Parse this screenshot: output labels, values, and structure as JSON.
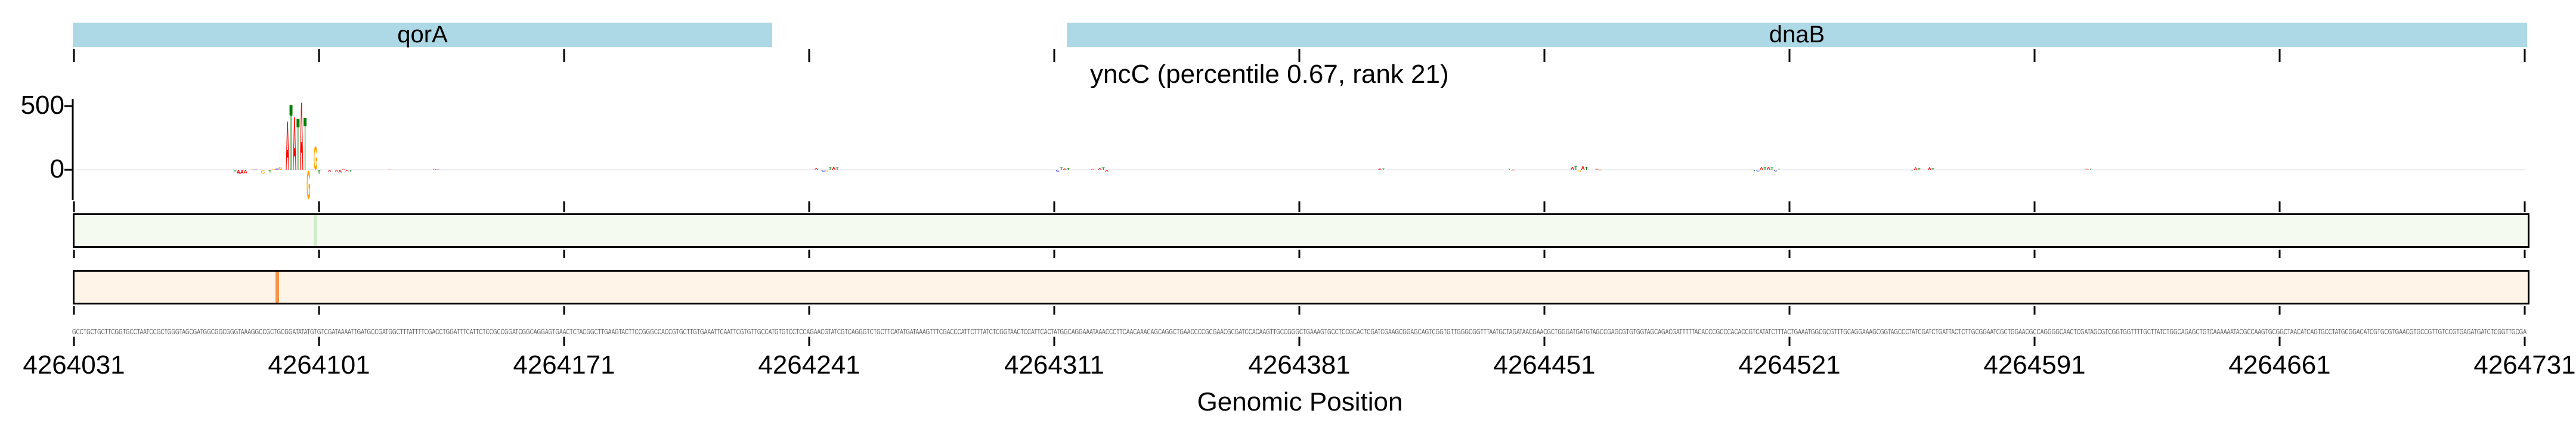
{
  "chart_data": {
    "type": "sequence-logo",
    "title": "yncC (percentile 0.67, rank 21)",
    "xlabel": "Genomic Position",
    "ylabel": "",
    "ylim": [
      -234,
      553
    ],
    "yticks": [
      {
        "value": 500,
        "label": "500"
      },
      {
        "value": 0,
        "label": "0"
      }
    ],
    "start": 4264031,
    "end": 4264731,
    "xticks": [
      "4264031",
      "4264101",
      "4264171",
      "4264241",
      "4264311",
      "4264381",
      "4264451",
      "4264521",
      "4264591",
      "4264661",
      "4264731"
    ],
    "genes": [
      {
        "name": "qorA",
        "start": 4264031,
        "end": 4264230
      },
      {
        "name": "dnaB",
        "start": 4264314,
        "end": 4264731
      }
    ],
    "base_colors": {
      "A": "#ff0000",
      "C": "#0000ff",
      "G": "#ffa500",
      "T": "#008000"
    },
    "sequence": "GCCTGCTGCTTCGGTGCCTAATCCGCTGGGTAGCGATGGCGGCGGGTAAAGGCCGCTGCGGATATATGTGTCGATAAAATTGATGCCGATGGCTTTATTTTCGACCTGGATTTCATTCTCCGCCGGATCGGCAGGAGTGAACTCTACGGCTTGAAGTACTTCCGGGCCACCGTGCTTGTGAAATTCAATTCGTGTTGCCATGTGTCCTCCAGAACGTATCGTCAGGGTCTGCTTCATATGATAAAGTTTCGACCCATTCTTTATCTCGGTAACTCCATTCACTATGGCAGGAAATAAACCCTTCAACAAACAGCAGGCTGAACCCCGCGAACGCGATCCACAAGTTGCCGGGCTGAAAGTGCCTCCGCACTCGATCGAAGCGGAGCAGTCGGTGTTGGGCGGTTTAATGCTAGATAACGAACGCTGGGATGATGTAGCCGAGCGTGTGGTAGCAGACGATTTTTACACCCGCCCACACCGTCATATCTTTACTGAAATGGCGCGTTTGCAGGAAAGCGGTAGCCCTATCGATCTGATTACTCTTGCGGAATCGCTGGAACGCCAGGGGCAACTCGATAGCGTCGGTGGTTTTGCTTATCTGGCAGAGCTGTCAAAAAATACGCCAAGTGCGGCTAACATCAGTGCCTATGCGGACATCGTGCGTGAACGTGCCGTTGTCCGTGAGATGATCTCGGTTGCGA",
    "attributions": [
      {
        "offset": 46,
        "value": -15
      },
      {
        "offset": 47,
        "value": -30
      },
      {
        "offset": 48,
        "value": -30
      },
      {
        "offset": 49,
        "value": -28
      },
      {
        "offset": 51,
        "value": 6
      },
      {
        "offset": 52,
        "value": 6
      },
      {
        "offset": 54,
        "value": -30
      },
      {
        "offset": 56,
        "value": -20
      },
      {
        "offset": 57,
        "value": 10
      },
      {
        "offset": 58,
        "value": 12
      },
      {
        "offset": 59,
        "value": 25
      },
      {
        "offset": 61,
        "value": 397
      },
      {
        "offset": 62,
        "value": 532
      },
      {
        "offset": 63,
        "value": 430
      },
      {
        "offset": 64,
        "value": 416
      },
      {
        "offset": 65,
        "value": 551
      },
      {
        "offset": 66,
        "value": 425
      },
      {
        "offset": 67,
        "value": -229
      },
      {
        "offset": 68,
        "value": 4
      },
      {
        "offset": 69,
        "value": 191
      },
      {
        "offset": 70,
        "value": -30
      },
      {
        "offset": 73,
        "value": -15
      },
      {
        "offset": 75,
        "value": -15
      },
      {
        "offset": 76,
        "value": -20
      },
      {
        "offset": 77,
        "value": 8
      },
      {
        "offset": 78,
        "value": -12
      },
      {
        "offset": 79,
        "value": -15
      },
      {
        "offset": 90,
        "value": 6
      },
      {
        "offset": 103,
        "value": 8
      },
      {
        "offset": 104,
        "value": 6
      },
      {
        "offset": 212,
        "value": 15
      },
      {
        "offset": 214,
        "value": -15
      },
      {
        "offset": 215,
        "value": -15
      },
      {
        "offset": 216,
        "value": 20
      },
      {
        "offset": 217,
        "value": 25
      },
      {
        "offset": 218,
        "value": 20
      },
      {
        "offset": 281,
        "value": -15
      },
      {
        "offset": 282,
        "value": 18
      },
      {
        "offset": 283,
        "value": 12
      },
      {
        "offset": 284,
        "value": 15
      },
      {
        "offset": 291,
        "value": 10
      },
      {
        "offset": 293,
        "value": 15
      },
      {
        "offset": 294,
        "value": 18
      },
      {
        "offset": 295,
        "value": -15
      },
      {
        "offset": 373,
        "value": 12
      },
      {
        "offset": 374,
        "value": 12
      },
      {
        "offset": 410,
        "value": 8
      },
      {
        "offset": 411,
        "value": -8
      },
      {
        "offset": 428,
        "value": 25
      },
      {
        "offset": 429,
        "value": 30
      },
      {
        "offset": 430,
        "value": -15
      },
      {
        "offset": 431,
        "value": 28
      },
      {
        "offset": 432,
        "value": 25
      },
      {
        "offset": 435,
        "value": 10
      },
      {
        "offset": 436,
        "value": -8
      },
      {
        "offset": 480,
        "value": -12
      },
      {
        "offset": 481,
        "value": -12
      },
      {
        "offset": 482,
        "value": 22
      },
      {
        "offset": 483,
        "value": 25
      },
      {
        "offset": 484,
        "value": 25
      },
      {
        "offset": 485,
        "value": 22
      },
      {
        "offset": 486,
        "value": -12
      },
      {
        "offset": 487,
        "value": 10
      },
      {
        "offset": 525,
        "value": -10
      },
      {
        "offset": 526,
        "value": 18
      },
      {
        "offset": 527,
        "value": 15
      },
      {
        "offset": 530,
        "value": 18
      },
      {
        "offset": 531,
        "value": 15
      },
      {
        "offset": 575,
        "value": 10
      },
      {
        "offset": 576,
        "value": 10
      }
    ],
    "tracks": [
      {
        "name": "green-track",
        "fill": "#f5faf1",
        "highlight_color": "#d2ecc9",
        "highlights": [
          69
        ]
      },
      {
        "name": "orange-track",
        "fill": "#fef4e8",
        "highlight_color": "#f8934a",
        "highlights": [
          58
        ]
      }
    ]
  }
}
